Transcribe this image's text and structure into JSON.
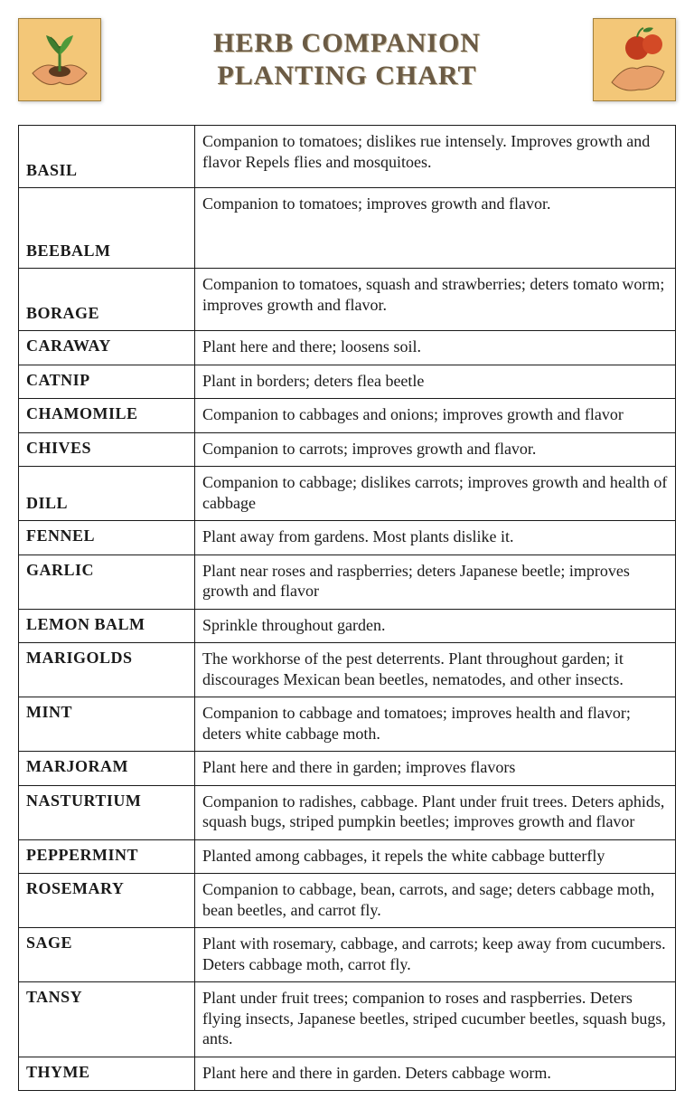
{
  "title_line1": "HERB COMPANION",
  "title_line2": "PLANTING CHART",
  "colors": {
    "title_text": "#6b5b45",
    "title_shadow": "#c7bba0",
    "border": "#1a1a1a",
    "thumb_bg": "#f3c778",
    "thumb_border": "#a07f3c",
    "leaf_green": "#3f7d2f",
    "hand_skin": "#e8a06a",
    "fruit_red": "#c23b1e",
    "background": "#ffffff"
  },
  "typography": {
    "title_fontsize": 30,
    "body_fontsize": 18,
    "font_family": "Times New Roman"
  },
  "left_image_alt": "hands-holding-sprout-icon",
  "right_image_alt": "hand-with-apples-icon",
  "rows": [
    {
      "herb": "BASIL",
      "desc": "Companion to tomatoes; dislikes rue intensely. Improves growth and flavor Repels flies and mosquitoes.",
      "name_valign": "bottom",
      "height_class": "tall-1"
    },
    {
      "herb": "BEEBALM",
      "desc": "Companion to tomatoes; improves growth and flavor.",
      "name_valign": "bottom",
      "height_class": "tall-2"
    },
    {
      "herb": "BORAGE",
      "desc": "Companion to tomatoes, squash and strawberries; deters tomato worm; improves growth and flavor.",
      "name_valign": "bottom",
      "height_class": "tall-1"
    },
    {
      "herb": "CARAWAY",
      "desc": "Plant here and there; loosens soil.",
      "name_valign": "top"
    },
    {
      "herb": "CATNIP",
      "desc": "Plant in borders; deters flea beetle",
      "name_valign": "top"
    },
    {
      "herb": "CHAMOMILE",
      "desc": "Companion to cabbages and onions; improves growth and flavor",
      "name_valign": "top"
    },
    {
      "herb": "CHIVES",
      "desc": "Companion to carrots; improves growth and flavor.",
      "name_valign": "top"
    },
    {
      "herb": "DILL",
      "desc": "Companion to cabbage; dislikes carrots; improves growth and health of cabbage",
      "name_valign": "bottom"
    },
    {
      "herb": "FENNEL",
      "desc": "Plant away from gardens. Most plants dislike it.",
      "name_valign": "top"
    },
    {
      "herb": "GARLIC",
      "desc": "Plant near roses and raspberries; deters Japanese beetle; improves growth and flavor",
      "name_valign": "top"
    },
    {
      "herb": "LEMON BALM",
      "desc": "Sprinkle throughout garden.",
      "name_valign": "top"
    },
    {
      "herb": "MARIGOLDS",
      "desc": "The workhorse of the pest deterrents. Plant throughout garden; it discourages Mexican bean beetles, nematodes, and other insects.",
      "name_valign": "top"
    },
    {
      "herb": "MINT",
      "desc": "Companion to cabbage and tomatoes; improves health and flavor; deters white cabbage moth.",
      "name_valign": "top"
    },
    {
      "herb": "MARJORAM",
      "desc": "Plant here and there in garden; improves flavors",
      "name_valign": "top"
    },
    {
      "herb": "NASTURTIUM",
      "desc": "Companion to radishes, cabbage. Plant under fruit trees. Deters aphids, squash bugs, striped pumpkin beetles; improves growth and flavor",
      "name_valign": "top"
    },
    {
      "herb": "PEPPERMINT",
      "desc": "Planted among cabbages, it repels the white cabbage butterfly",
      "name_valign": "top"
    },
    {
      "herb": "ROSEMARY",
      "desc": "Companion to cabbage, bean, carrots, and sage; deters cabbage moth, bean beetles, and carrot fly.",
      "name_valign": "top"
    },
    {
      "herb": "SAGE",
      "desc": "Plant with rosemary, cabbage, and carrots; keep away from cucumbers. Deters cabbage moth, carrot fly.",
      "name_valign": "top"
    },
    {
      "herb": "TANSY",
      "desc": "Plant under fruit trees; companion to roses and raspberries. Deters flying insects, Japanese beetles, striped cucumber beetles, squash bugs, ants.",
      "name_valign": "top"
    },
    {
      "herb": "THYME",
      "desc": "Plant here and there in garden. Deters cabbage worm.",
      "name_valign": "top"
    }
  ]
}
